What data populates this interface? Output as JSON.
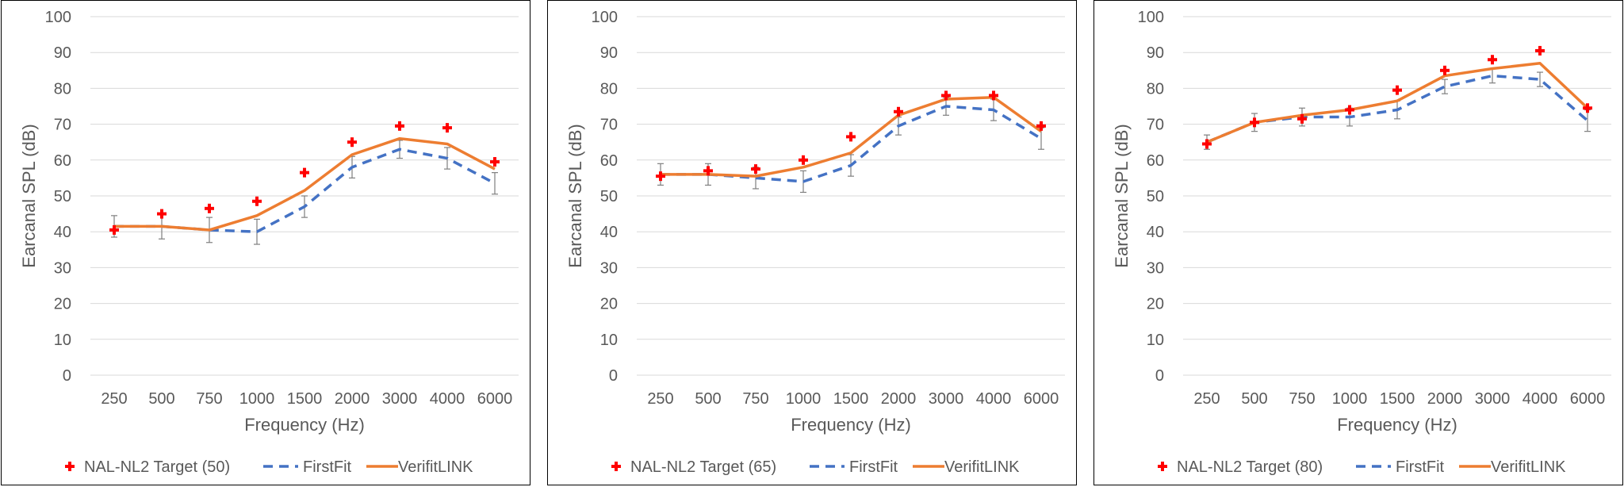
{
  "colors": {
    "target": "#ff0000",
    "firstfit": "#4472c4",
    "verifit": "#ed7d31",
    "grid": "#d9d9d9",
    "errorbar": "#7f7f7f",
    "text": "#595959"
  },
  "chart_data": [
    {
      "type": "line",
      "title": "",
      "xlabel": "Frequency (Hz)",
      "ylabel": "Earcanal SPL (dB)",
      "categories": [
        "250",
        "500",
        "750",
        "1000",
        "1500",
        "2000",
        "3000",
        "4000",
        "6000"
      ],
      "ylim": [
        0,
        100
      ],
      "yticks": [
        "0",
        "10",
        "20",
        "30",
        "40",
        "50",
        "60",
        "70",
        "80",
        "90",
        "100"
      ],
      "grid": true,
      "legend_position": "bottom",
      "series": [
        {
          "name": "NAL-NL2 Target (50)",
          "marker": "plus",
          "values": [
            40.5,
            45,
            46.5,
            48.5,
            56.5,
            65,
            69.5,
            69,
            59.5
          ]
        },
        {
          "name": "FirstFit",
          "style": "dashed",
          "values": [
            41.5,
            41.5,
            40.5,
            40,
            47,
            58,
            63,
            60.5,
            53.5
          ],
          "error": [
            3,
            3.5,
            3.5,
            3.5,
            3,
            3,
            2.5,
            3,
            3
          ]
        },
        {
          "name": "VerifitLINK",
          "style": "solid",
          "values": [
            41.5,
            41.5,
            40.5,
            44.5,
            51.5,
            61.5,
            66,
            64.5,
            57.5
          ]
        }
      ]
    },
    {
      "type": "line",
      "title": "",
      "xlabel": "Frequency (Hz)",
      "ylabel": "Earcanal SPL (dB)",
      "categories": [
        "250",
        "500",
        "750",
        "1000",
        "1500",
        "2000",
        "3000",
        "4000",
        "6000"
      ],
      "ylim": [
        0,
        100
      ],
      "yticks": [
        "0",
        "10",
        "20",
        "30",
        "40",
        "50",
        "60",
        "70",
        "80",
        "90",
        "100"
      ],
      "grid": true,
      "legend_position": "bottom",
      "series": [
        {
          "name": "NAL-NL2 Target (65)",
          "marker": "plus",
          "values": [
            55.5,
            57,
            57.5,
            60,
            66.5,
            73.5,
            78,
            78,
            69.5
          ]
        },
        {
          "name": "FirstFit",
          "style": "dashed",
          "values": [
            56,
            56,
            55,
            54,
            58.5,
            69.5,
            75,
            74,
            66
          ],
          "error": [
            3,
            3,
            3,
            3,
            3,
            2.5,
            2.5,
            3,
            3
          ]
        },
        {
          "name": "VerifitLINK",
          "style": "solid",
          "values": [
            56,
            56,
            55.5,
            58,
            62,
            72.5,
            77,
            77.5,
            68
          ]
        }
      ]
    },
    {
      "type": "line",
      "title": "",
      "xlabel": "Frequency (Hz)",
      "ylabel": "Earcanal SPL (dB)",
      "categories": [
        "250",
        "500",
        "750",
        "1000",
        "1500",
        "2000",
        "3000",
        "4000",
        "6000"
      ],
      "ylim": [
        0,
        100
      ],
      "yticks": [
        "0",
        "10",
        "20",
        "30",
        "40",
        "50",
        "60",
        "70",
        "80",
        "90",
        "100"
      ],
      "grid": true,
      "legend_position": "bottom",
      "series": [
        {
          "name": "NAL-NL2 Target (80)",
          "marker": "plus",
          "values": [
            64.5,
            70.5,
            71.5,
            74,
            79.5,
            85,
            88,
            90.5,
            74.5
          ]
        },
        {
          "name": "FirstFit",
          "style": "dashed",
          "values": [
            65,
            70.5,
            72,
            72,
            74,
            80.5,
            83.5,
            82.5,
            71
          ],
          "error": [
            2,
            2.5,
            2.5,
            2.5,
            2.5,
            2,
            2,
            2,
            3
          ]
        },
        {
          "name": "VerifitLINK",
          "style": "solid",
          "values": [
            65,
            70.5,
            72.5,
            74,
            76.5,
            83.5,
            85.5,
            87,
            74.5
          ]
        }
      ]
    }
  ]
}
